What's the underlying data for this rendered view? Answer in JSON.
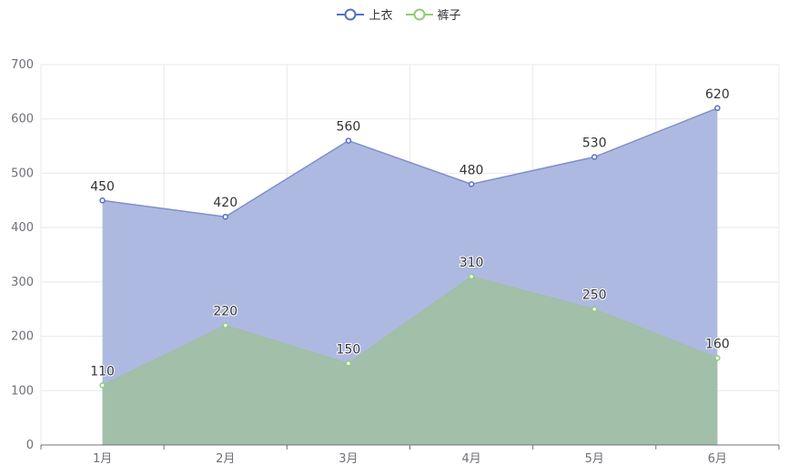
{
  "chart_data": {
    "type": "area",
    "categories": [
      "1月",
      "2月",
      "3月",
      "4月",
      "5月",
      "6月"
    ],
    "ylim": [
      0,
      700
    ],
    "yticks": [
      0,
      100,
      200,
      300,
      400,
      500,
      600,
      700
    ],
    "grid": true,
    "legend_placement": "top-center",
    "series": [
      {
        "name": "上衣",
        "values": [
          450,
          420,
          560,
          480,
          530,
          620
        ],
        "color": "#5470c6",
        "fill": "#aab5e0"
      },
      {
        "name": "裤子",
        "values": [
          110,
          220,
          150,
          310,
          250,
          160
        ],
        "color": "#91cc75",
        "fill": "#a1bfa5"
      }
    ]
  },
  "legend": {
    "items": [
      {
        "name": "上衣",
        "color": "#5470c6"
      },
      {
        "name": "裤子",
        "color": "#91cc75"
      }
    ]
  },
  "colors": {
    "grid": "#e8e8e8",
    "axis": "#6e7079",
    "top_line": "#7f8fc8"
  }
}
